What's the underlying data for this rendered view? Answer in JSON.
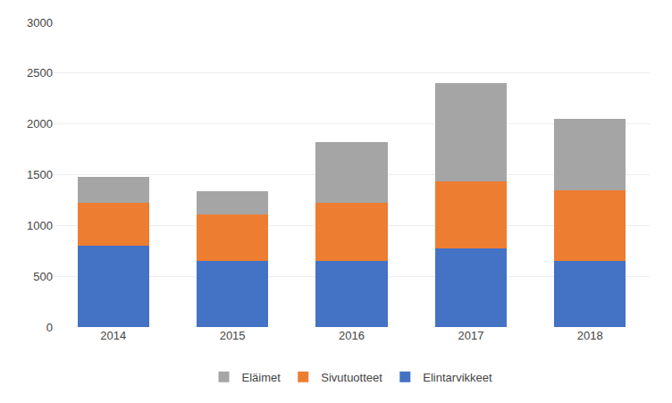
{
  "chart_data": {
    "type": "bar",
    "stacked": true,
    "categories": [
      "2014",
      "2015",
      "2016",
      "2017",
      "2018"
    ],
    "series": [
      {
        "name": "Elintarvikkeet",
        "color": "#4472C4",
        "values": [
          800,
          650,
          650,
          775,
          650
        ]
      },
      {
        "name": "Sivutuotteet",
        "color": "#ED7D31",
        "values": [
          425,
          455,
          570,
          660,
          700
        ]
      },
      {
        "name": "Eläimet",
        "color": "#A5A5A5",
        "values": [
          250,
          230,
          600,
          965,
          700
        ]
      }
    ],
    "ylim": [
      0,
      3000
    ],
    "yticks": [
      0,
      500,
      1000,
      1500,
      2000,
      2500,
      3000
    ],
    "grid": true,
    "legend": "bottom"
  }
}
